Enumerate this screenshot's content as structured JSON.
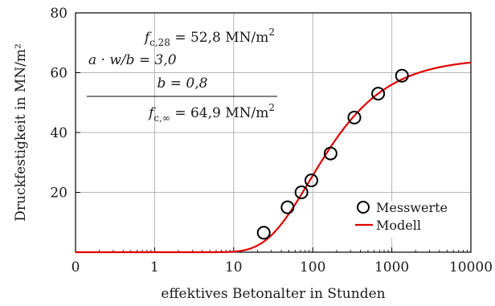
{
  "chart_data": {
    "type": "scatter",
    "xlabel": "effektives Betonalter in Stunden",
    "ylabel": "Druckfestigkeit in MN/m²",
    "xscale": "log",
    "xlim": [
      0.1,
      10000
    ],
    "ylim": [
      0,
      80
    ],
    "x_tick_labels": [
      "0",
      "1",
      "10",
      "100",
      "1000",
      "10000"
    ],
    "x_tick_values": [
      0.1,
      1,
      10,
      100,
      1000,
      10000
    ],
    "y_tick_labels": [
      "20",
      "40",
      "60",
      "80"
    ],
    "y_tick_values": [
      20,
      40,
      60,
      80
    ],
    "grid": true,
    "legend_position": "bottom-right",
    "series": [
      {
        "name": "Messwerte",
        "kind": "points",
        "marker": "open-circle",
        "color": "#000000",
        "points": [
          {
            "x": 24,
            "y": 6.5
          },
          {
            "x": 48,
            "y": 15
          },
          {
            "x": 72,
            "y": 20
          },
          {
            "x": 96,
            "y": 24
          },
          {
            "x": 168,
            "y": 33
          },
          {
            "x": 336,
            "y": 45
          },
          {
            "x": 672,
            "y": 53
          },
          {
            "x": 1344,
            "y": 59
          }
        ]
      },
      {
        "name": "Modell",
        "kind": "line",
        "color": "#e00000",
        "model": {
          "f_inf": 64.9,
          "a": 3.0,
          "b": 0.8
        }
      }
    ],
    "annotation": {
      "line1_main": "f",
      "line1_sub": "c,28",
      "line1_rest": " = 52,8 MN/m",
      "line1_sup": "2",
      "line2": "a · w/b = 3,0",
      "line3": "b = 0,8",
      "line4_main": "f",
      "line4_sub": "c,∞",
      "line4_rest": " = 64,9 MN/m",
      "line4_sup": "2"
    }
  }
}
